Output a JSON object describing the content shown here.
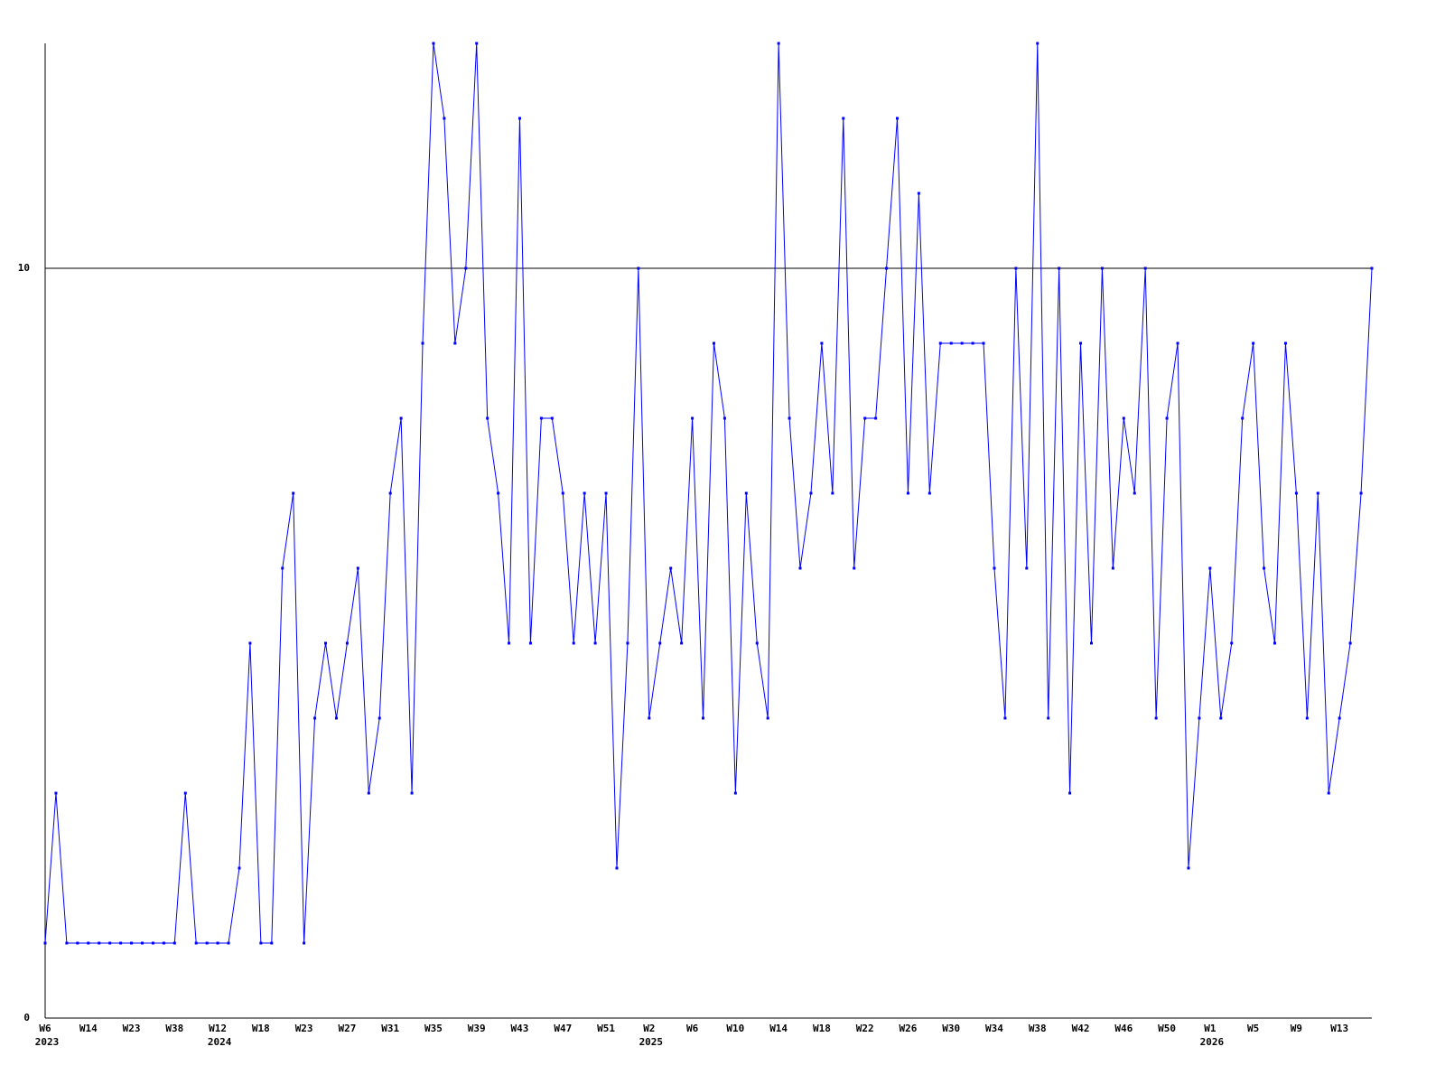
{
  "chart_data": {
    "type": "line",
    "categories": [
      "W6",
      null,
      null,
      null,
      "W14",
      null,
      null,
      null,
      "W23",
      null,
      null,
      null,
      "W38",
      null,
      null,
      null,
      "W12",
      null,
      null,
      null,
      "W18",
      null,
      null,
      null,
      "W23",
      null,
      null,
      null,
      "W27",
      null,
      null,
      null,
      "W31",
      null,
      null,
      null,
      "W35",
      null,
      null,
      null,
      "W39",
      null,
      null,
      null,
      "W43",
      null,
      null,
      null,
      "W47",
      null,
      null,
      null,
      "W51",
      null,
      null,
      null,
      "W2",
      null,
      null,
      null,
      "W6",
      null,
      null,
      null,
      "W10",
      null,
      null,
      null,
      "W14",
      null,
      null,
      null,
      "W18",
      null,
      null,
      null,
      "W22",
      null,
      null,
      null,
      "W26",
      null,
      null,
      null,
      "W30",
      null,
      null,
      null,
      "W34",
      null,
      null,
      null,
      "W38",
      null,
      null,
      null,
      "W42",
      null,
      null,
      null,
      "W46",
      null,
      null,
      null,
      "W50",
      null,
      null,
      null,
      "W1",
      null,
      null,
      null,
      "W5",
      null,
      null,
      null,
      "W9",
      null,
      null,
      null,
      "W13",
      null,
      null,
      null
    ],
    "category_years": [
      "2023",
      null,
      null,
      null,
      null,
      null,
      null,
      null,
      null,
      null,
      null,
      null,
      null,
      null,
      null,
      null,
      "2024",
      null,
      null,
      null,
      null,
      null,
      null,
      null,
      null,
      null,
      null,
      null,
      null,
      null,
      null,
      null,
      null,
      null,
      null,
      null,
      null,
      null,
      null,
      null,
      null,
      null,
      null,
      null,
      null,
      null,
      null,
      null,
      null,
      null,
      null,
      null,
      null,
      null,
      null,
      null,
      "2025",
      null,
      null,
      null,
      null,
      null,
      null,
      null,
      null,
      null,
      null,
      null,
      null,
      null,
      null,
      null,
      null,
      null,
      null,
      null,
      null,
      null,
      null,
      null,
      null,
      null,
      null,
      null,
      null,
      null,
      null,
      null,
      null,
      null,
      null,
      null,
      null,
      null,
      null,
      null,
      null,
      null,
      null,
      null,
      null,
      null,
      null,
      null,
      null,
      null,
      null,
      null,
      "2026",
      null,
      null,
      null,
      null,
      null,
      null,
      null,
      null,
      null,
      null,
      null,
      null,
      null,
      null,
      null
    ],
    "series": [
      {
        "color": "#0000ff",
        "values": [
          1,
          3,
          1,
          1,
          1,
          1,
          1,
          1,
          1,
          1,
          1,
          1,
          1,
          3,
          1,
          1,
          1,
          1,
          2,
          5,
          1,
          1,
          6,
          7,
          1,
          4,
          5,
          4,
          5,
          6,
          3,
          4,
          7,
          8,
          3,
          9,
          13,
          12,
          9,
          10,
          13,
          8,
          7,
          5,
          12,
          5,
          8,
          8,
          7,
          5,
          7,
          5,
          7,
          2,
          5,
          10,
          4,
          5,
          6,
          5,
          8,
          4,
          9,
          8,
          3,
          7,
          5,
          4,
          13,
          8,
          6,
          7,
          9,
          7,
          12,
          6,
          8,
          8,
          10,
          12,
          7,
          11,
          7,
          9,
          9,
          9,
          9,
          9,
          6,
          4,
          10,
          6,
          13,
          4,
          10,
          3,
          9,
          5,
          10,
          6,
          8,
          7,
          10,
          4,
          8,
          9,
          2,
          4,
          6,
          4,
          5,
          8,
          9,
          6,
          5,
          9,
          7,
          4,
          7,
          3,
          4,
          5,
          7,
          10
        ]
      }
    ],
    "ylim": [
      0,
      13
    ],
    "yticks": [
      0,
      10
    ],
    "grid": true
  }
}
